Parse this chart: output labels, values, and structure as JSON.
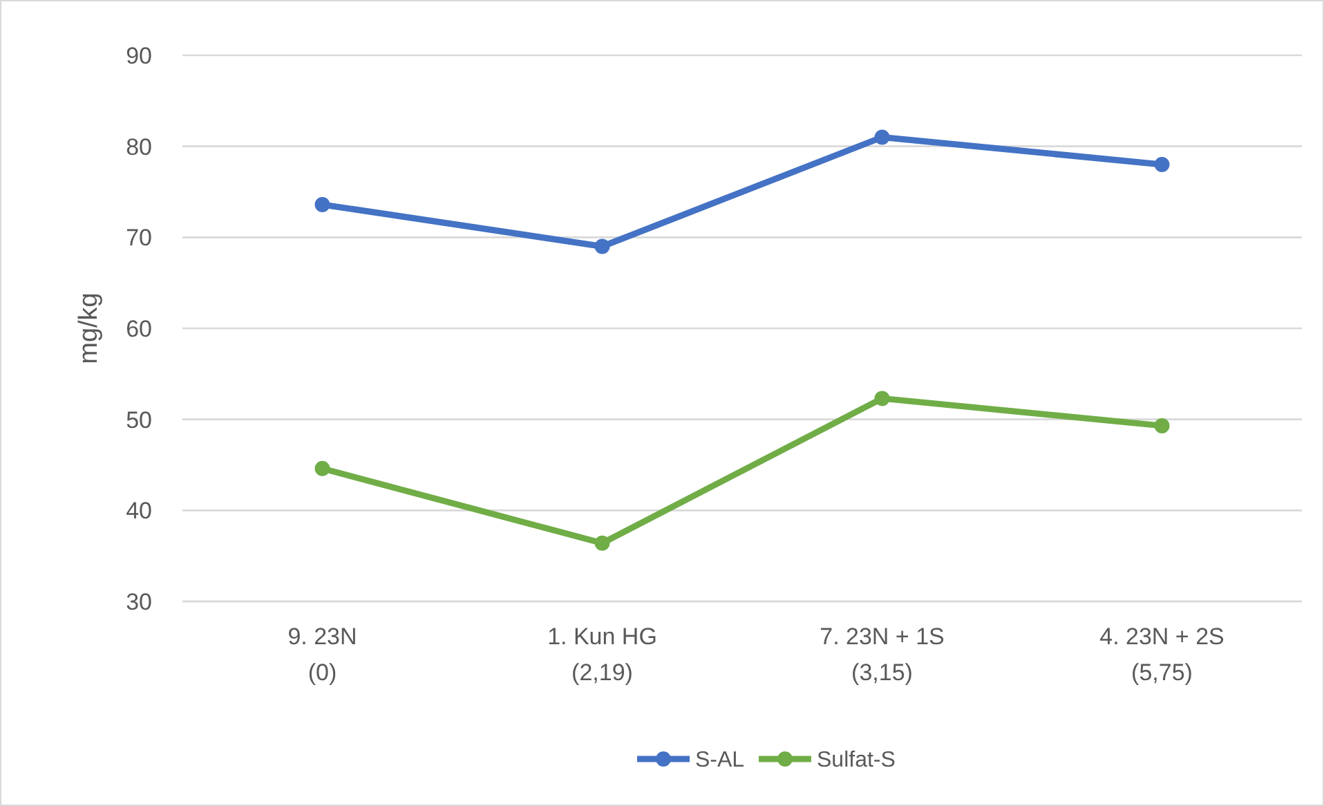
{
  "chart_data": {
    "type": "line",
    "ylabel": "mg/kg",
    "categories": [
      "9. 23N\n(0)",
      "1. Kun HG\n(2,19)",
      "7. 23N + 1S\n(3,15)",
      "4. 23N + 2S\n(5,75)"
    ],
    "series": [
      {
        "name": "S-AL",
        "color": "#4472c4",
        "values": [
          73.6,
          69.0,
          81.0,
          78.0
        ]
      },
      {
        "name": "Sulfat-S",
        "color": "#70ad47",
        "values": [
          44.6,
          36.4,
          52.3,
          49.3
        ]
      }
    ],
    "ylim": [
      30,
      90
    ],
    "yticks": [
      30,
      40,
      50,
      60,
      70,
      80,
      90
    ],
    "grid": "y",
    "legend": "bottom",
    "marker": "circle",
    "line_style": "solid"
  }
}
